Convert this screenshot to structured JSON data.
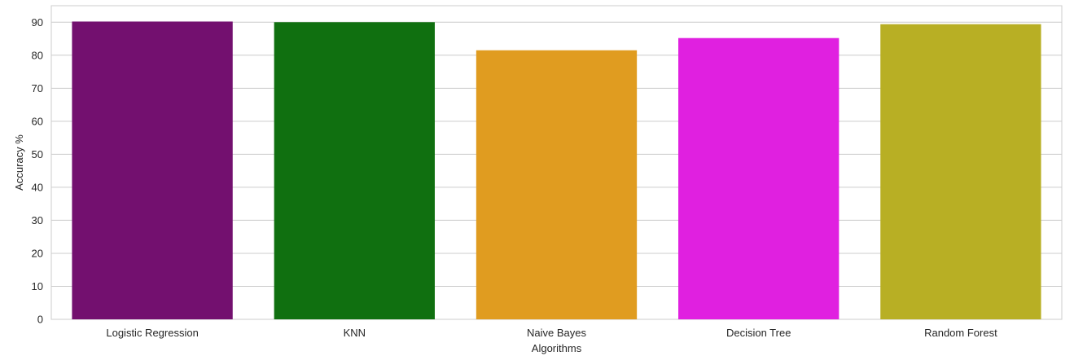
{
  "chart_data": {
    "type": "bar",
    "categories": [
      "Logistic Regression",
      "KNN",
      "Naive Bayes",
      "Decision Tree",
      "Random Forest"
    ],
    "values": [
      90.2,
      90.0,
      81.5,
      85.2,
      89.4
    ],
    "colors": [
      "#73106f",
      "#107010",
      "#e09c20",
      "#e020e0",
      "#b8af24"
    ],
    "xlabel": "Algorithms",
    "ylabel": "Accuracy %",
    "ylim": [
      0,
      95
    ],
    "yticks": [
      0,
      10,
      20,
      30,
      40,
      50,
      60,
      70,
      80,
      90
    ],
    "grid": true,
    "gridColor": "#cccccc",
    "spineColor": "#cccccc"
  }
}
